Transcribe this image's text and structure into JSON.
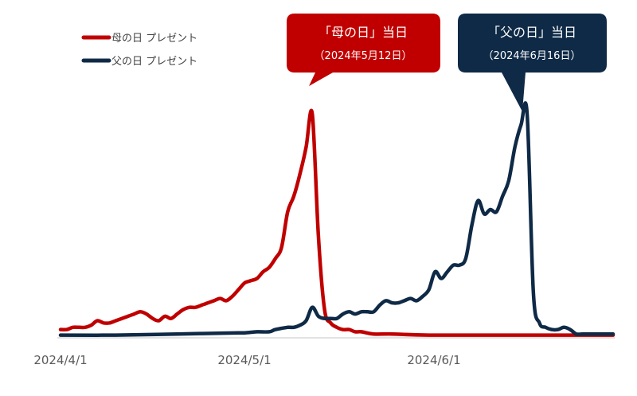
{
  "chart_data": {
    "type": "line",
    "x_ticks": [
      "2024/4/1",
      "2024/5/1",
      "2024/6/1"
    ],
    "x_range": [
      "2024-04-01",
      "2024-06-30"
    ],
    "y_range": [
      0,
      100
    ],
    "grid": false,
    "legend_position": "top-left",
    "series": [
      {
        "name": "母の日 プレゼント",
        "color": "#c00000",
        "points": [
          [
            "2024-04-01",
            3
          ],
          [
            "2024-04-02",
            3
          ],
          [
            "2024-04-03",
            4
          ],
          [
            "2024-04-04",
            4
          ],
          [
            "2024-04-05",
            4
          ],
          [
            "2024-04-06",
            5
          ],
          [
            "2024-04-07",
            7
          ],
          [
            "2024-04-08",
            6
          ],
          [
            "2024-04-09",
            6
          ],
          [
            "2024-04-10",
            7
          ],
          [
            "2024-04-11",
            8
          ],
          [
            "2024-04-12",
            9
          ],
          [
            "2024-04-13",
            10
          ],
          [
            "2024-04-14",
            11
          ],
          [
            "2024-04-15",
            10
          ],
          [
            "2024-04-16",
            8
          ],
          [
            "2024-04-17",
            7
          ],
          [
            "2024-04-18",
            9
          ],
          [
            "2024-04-19",
            8
          ],
          [
            "2024-04-20",
            10
          ],
          [
            "2024-04-21",
            12
          ],
          [
            "2024-04-22",
            13
          ],
          [
            "2024-04-23",
            13
          ],
          [
            "2024-04-24",
            14
          ],
          [
            "2024-04-25",
            15
          ],
          [
            "2024-04-26",
            16
          ],
          [
            "2024-04-27",
            17
          ],
          [
            "2024-04-28",
            16
          ],
          [
            "2024-04-29",
            18
          ],
          [
            "2024-04-30",
            21
          ],
          [
            "2024-05-01",
            24
          ],
          [
            "2024-05-02",
            25
          ],
          [
            "2024-05-03",
            26
          ],
          [
            "2024-05-04",
            29
          ],
          [
            "2024-05-05",
            31
          ],
          [
            "2024-05-06",
            35
          ],
          [
            "2024-05-07",
            40
          ],
          [
            "2024-05-08",
            56
          ],
          [
            "2024-05-09",
            63
          ],
          [
            "2024-05-10",
            73
          ],
          [
            "2024-05-11",
            85
          ],
          [
            "2024-05-12",
            100
          ],
          [
            "2024-05-13",
            45
          ],
          [
            "2024-05-14",
            12
          ],
          [
            "2024-05-15",
            6
          ],
          [
            "2024-05-16",
            4
          ],
          [
            "2024-05-17",
            3
          ],
          [
            "2024-05-18",
            3
          ],
          [
            "2024-05-19",
            2
          ],
          [
            "2024-05-20",
            2
          ],
          [
            "2024-05-22",
            1
          ],
          [
            "2024-05-25",
            1
          ],
          [
            "2024-05-31",
            0.5
          ],
          [
            "2024-06-15",
            0.5
          ],
          [
            "2024-06-30",
            0.5
          ]
        ]
      },
      {
        "name": "父の日 プレゼント",
        "color": "#0f2a46",
        "points": [
          [
            "2024-04-01",
            0.5
          ],
          [
            "2024-04-10",
            0.5
          ],
          [
            "2024-04-20",
            1
          ],
          [
            "2024-04-30",
            1.5
          ],
          [
            "2024-05-01",
            1.5
          ],
          [
            "2024-05-03",
            2
          ],
          [
            "2024-05-05",
            2
          ],
          [
            "2024-05-06",
            3
          ],
          [
            "2024-05-08",
            4
          ],
          [
            "2024-05-09",
            4
          ],
          [
            "2024-05-10",
            5
          ],
          [
            "2024-05-11",
            7
          ],
          [
            "2024-05-12",
            13
          ],
          [
            "2024-05-13",
            9
          ],
          [
            "2024-05-14",
            8
          ],
          [
            "2024-05-15",
            8
          ],
          [
            "2024-05-16",
            8
          ],
          [
            "2024-05-17",
            10
          ],
          [
            "2024-05-18",
            11
          ],
          [
            "2024-05-19",
            10
          ],
          [
            "2024-05-20",
            11
          ],
          [
            "2024-05-21",
            11
          ],
          [
            "2024-05-22",
            11
          ],
          [
            "2024-05-23",
            14
          ],
          [
            "2024-05-24",
            16
          ],
          [
            "2024-05-25",
            15
          ],
          [
            "2024-05-26",
            15
          ],
          [
            "2024-05-27",
            16
          ],
          [
            "2024-05-28",
            17
          ],
          [
            "2024-05-29",
            16
          ],
          [
            "2024-05-30",
            18
          ],
          [
            "2024-05-31",
            21
          ],
          [
            "2024-06-01",
            29
          ],
          [
            "2024-06-02",
            26
          ],
          [
            "2024-06-03",
            29
          ],
          [
            "2024-06-04",
            32
          ],
          [
            "2024-06-05",
            32
          ],
          [
            "2024-06-06",
            35
          ],
          [
            "2024-06-07",
            50
          ],
          [
            "2024-06-08",
            61
          ],
          [
            "2024-06-09",
            55
          ],
          [
            "2024-06-10",
            57
          ],
          [
            "2024-06-11",
            56
          ],
          [
            "2024-06-12",
            63
          ],
          [
            "2024-06-13",
            70
          ],
          [
            "2024-06-14",
            85
          ],
          [
            "2024-06-15",
            95
          ],
          [
            "2024-06-16",
            100
          ],
          [
            "2024-06-17",
            20
          ],
          [
            "2024-06-18",
            6
          ],
          [
            "2024-06-19",
            4
          ],
          [
            "2024-06-20",
            3
          ],
          [
            "2024-06-21",
            3
          ],
          [
            "2024-06-22",
            4
          ],
          [
            "2024-06-23",
            3
          ],
          [
            "2024-06-24",
            1
          ],
          [
            "2024-06-25",
            1
          ],
          [
            "2024-06-27",
            1
          ],
          [
            "2024-06-30",
            1
          ]
        ]
      }
    ],
    "annotations": [
      {
        "title": "「母の日」当日",
        "date_label": "（2024年5月12日）",
        "date": "2024-05-12",
        "series": 0,
        "color": "#c00000"
      },
      {
        "title": "「父の日」当日",
        "date_label": "（2024年6月16日）",
        "date": "2024-06-16",
        "series": 1,
        "color": "#0f2a46"
      }
    ]
  }
}
